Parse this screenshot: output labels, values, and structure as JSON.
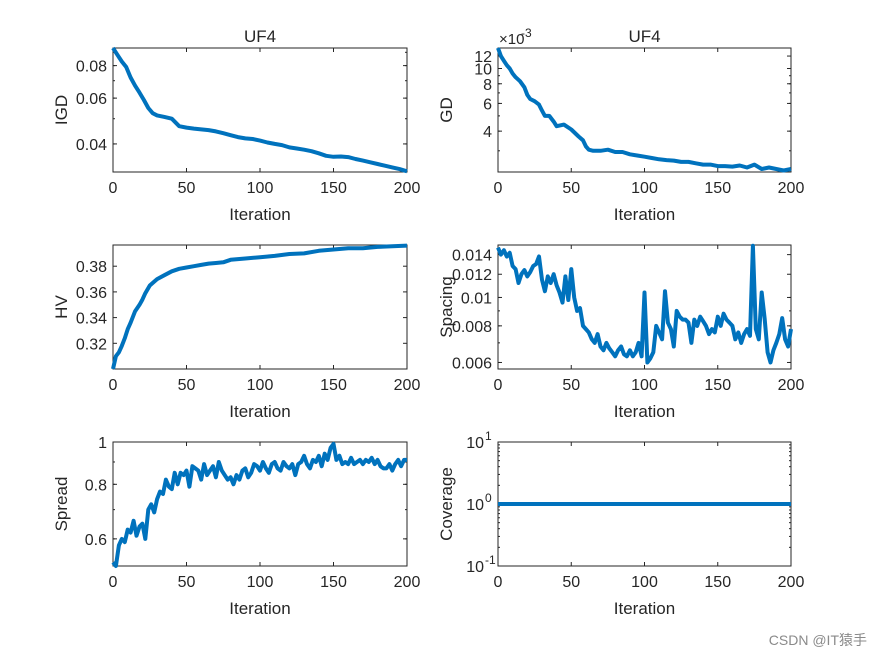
{
  "watermark": "CSDN @IT猿手",
  "colors": {
    "line": "#0072BD",
    "axis": "#262626",
    "background": "#ffffff"
  },
  "chart_data": [
    {
      "id": "igd",
      "type": "line",
      "title": "UF4",
      "xlabel": "Iteration",
      "ylabel": "IGD",
      "xlim": [
        0,
        200
      ],
      "ylim": [
        0.0312,
        0.0935
      ],
      "yscale": "log",
      "xticks": [
        0,
        50,
        100,
        150,
        200
      ],
      "xticklabels": [
        "0",
        "50",
        "100",
        "150",
        "200"
      ],
      "yticks": [
        0.04,
        0.06,
        0.08
      ],
      "yticklabels": [
        "0.04",
        "0.06",
        "0.08"
      ],
      "x": [
        0,
        3,
        6,
        9,
        12,
        15,
        18,
        21,
        24,
        27,
        30,
        35,
        40,
        45,
        50,
        55,
        60,
        65,
        70,
        75,
        80,
        85,
        90,
        95,
        100,
        105,
        110,
        115,
        120,
        125,
        130,
        135,
        140,
        145,
        150,
        155,
        160,
        165,
        170,
        175,
        180,
        185,
        190,
        195,
        200
      ],
      "y": [
        0.0935,
        0.088,
        0.083,
        0.079,
        0.072,
        0.067,
        0.063,
        0.059,
        0.055,
        0.0525,
        0.0515,
        0.0508,
        0.05,
        0.0468,
        0.0462,
        0.0458,
        0.0455,
        0.0452,
        0.0447,
        0.044,
        0.0432,
        0.0425,
        0.042,
        0.0418,
        0.0412,
        0.0405,
        0.04,
        0.0396,
        0.0388,
        0.0384,
        0.038,
        0.0375,
        0.0368,
        0.036,
        0.0357,
        0.0358,
        0.0356,
        0.035,
        0.0345,
        0.034,
        0.0335,
        0.033,
        0.0325,
        0.032,
        0.0314
      ]
    },
    {
      "id": "gd",
      "type": "line",
      "title": "UF4",
      "xlabel": "Iteration",
      "ylabel": "GD",
      "exponent_label": "×10",
      "exponent_power": "-3",
      "xlim": [
        0,
        200
      ],
      "ylim": [
        2.2,
        13.5
      ],
      "yscale": "log",
      "xticks": [
        0,
        50,
        100,
        150,
        200
      ],
      "xticklabels": [
        "0",
        "50",
        "100",
        "150",
        "200"
      ],
      "yticks": [
        4,
        6,
        8,
        10,
        12
      ],
      "yticklabels": [
        "4",
        "6",
        "8",
        "10",
        "12"
      ],
      "x": [
        0,
        2,
        4,
        6,
        8,
        10,
        12,
        15,
        18,
        20,
        22,
        25,
        28,
        30,
        32,
        35,
        38,
        40,
        45,
        50,
        55,
        58,
        60,
        62,
        65,
        70,
        75,
        80,
        85,
        90,
        95,
        100,
        105,
        110,
        115,
        120,
        125,
        130,
        135,
        140,
        145,
        150,
        155,
        160,
        165,
        170,
        175,
        180,
        185,
        190,
        195,
        200
      ],
      "y": [
        13.5,
        12.0,
        11.2,
        10.5,
        10.0,
        9.3,
        8.8,
        8.3,
        7.6,
        6.8,
        6.4,
        6.2,
        5.9,
        5.4,
        5.0,
        5.0,
        4.6,
        4.3,
        4.4,
        4.1,
        3.7,
        3.5,
        3.2,
        3.05,
        3.0,
        3.0,
        3.05,
        2.95,
        2.95,
        2.85,
        2.8,
        2.75,
        2.7,
        2.65,
        2.62,
        2.6,
        2.55,
        2.55,
        2.5,
        2.45,
        2.45,
        2.4,
        2.4,
        2.38,
        2.42,
        2.35,
        2.45,
        2.3,
        2.35,
        2.3,
        2.25,
        2.3
      ]
    },
    {
      "id": "hv",
      "type": "line",
      "title": "",
      "xlabel": "Iteration",
      "ylabel": "HV",
      "xlim": [
        0,
        200
      ],
      "ylim": [
        0.3,
        0.3965
      ],
      "yscale": "linear",
      "xticks": [
        0,
        50,
        100,
        150,
        200
      ],
      "xticklabels": [
        "0",
        "50",
        "100",
        "150",
        "200"
      ],
      "yticks": [
        0.32,
        0.34,
        0.36,
        0.38
      ],
      "yticklabels": [
        "0.32",
        "0.34",
        "0.36",
        "0.38"
      ],
      "x": [
        0,
        2,
        4,
        6,
        8,
        10,
        12,
        15,
        18,
        20,
        22,
        25,
        28,
        30,
        35,
        40,
        45,
        50,
        55,
        60,
        65,
        70,
        75,
        80,
        90,
        100,
        110,
        120,
        130,
        140,
        150,
        160,
        170,
        180,
        190,
        200
      ],
      "y": [
        0.3,
        0.31,
        0.313,
        0.318,
        0.324,
        0.331,
        0.336,
        0.345,
        0.35,
        0.354,
        0.359,
        0.365,
        0.368,
        0.37,
        0.373,
        0.376,
        0.378,
        0.379,
        0.38,
        0.381,
        0.382,
        0.3825,
        0.383,
        0.385,
        0.386,
        0.387,
        0.388,
        0.3895,
        0.39,
        0.392,
        0.393,
        0.394,
        0.394,
        0.395,
        0.3955,
        0.396
      ]
    },
    {
      "id": "spacing",
      "type": "line",
      "title": "",
      "xlabel": "Iteration",
      "ylabel": "Spacing",
      "xlim": [
        0,
        200
      ],
      "ylim": [
        0.0057,
        0.0151
      ],
      "yscale": "log",
      "xticks": [
        0,
        50,
        100,
        150,
        200
      ],
      "xticklabels": [
        "0",
        "50",
        "100",
        "150",
        "200"
      ],
      "yticks": [
        0.006,
        0.008,
        0.01,
        0.012,
        0.014
      ],
      "yticklabels": [
        "0.006",
        "0.008",
        "0.01",
        "0.012",
        "0.014"
      ],
      "x": [
        0,
        2,
        4,
        6,
        8,
        10,
        12,
        14,
        16,
        18,
        20,
        22,
        24,
        26,
        28,
        30,
        32,
        34,
        36,
        38,
        40,
        42,
        44,
        46,
        48,
        50,
        52,
        54,
        56,
        58,
        60,
        62,
        64,
        66,
        68,
        70,
        72,
        74,
        76,
        78,
        80,
        82,
        84,
        86,
        88,
        90,
        92,
        94,
        96,
        98,
        100,
        102,
        104,
        106,
        108,
        110,
        112,
        114,
        116,
        118,
        120,
        122,
        124,
        126,
        128,
        130,
        132,
        134,
        136,
        138,
        140,
        142,
        144,
        146,
        148,
        150,
        152,
        154,
        156,
        158,
        160,
        162,
        164,
        166,
        168,
        170,
        172,
        174,
        176,
        178,
        180,
        182,
        184,
        186,
        188,
        190,
        192,
        194,
        196,
        198,
        200
      ],
      "y": [
        0.0148,
        0.014,
        0.0145,
        0.0138,
        0.0142,
        0.0128,
        0.0125,
        0.0112,
        0.012,
        0.0124,
        0.0118,
        0.0122,
        0.0128,
        0.013,
        0.0138,
        0.0115,
        0.0105,
        0.0118,
        0.0112,
        0.012,
        0.011,
        0.0104,
        0.0096,
        0.0118,
        0.0098,
        0.0125,
        0.01,
        0.009,
        0.0092,
        0.008,
        0.0078,
        0.0076,
        0.0072,
        0.007,
        0.0075,
        0.0068,
        0.0066,
        0.007,
        0.0067,
        0.0065,
        0.0063,
        0.0066,
        0.0068,
        0.0064,
        0.0063,
        0.0066,
        0.0063,
        0.0065,
        0.007,
        0.0063,
        0.0104,
        0.006,
        0.0062,
        0.0065,
        0.008,
        0.0076,
        0.0072,
        0.0105,
        0.0082,
        0.0078,
        0.0068,
        0.009,
        0.0086,
        0.0084,
        0.0084,
        0.0082,
        0.007,
        0.0084,
        0.008,
        0.0086,
        0.0083,
        0.008,
        0.0075,
        0.0078,
        0.0076,
        0.0086,
        0.008,
        0.0088,
        0.0084,
        0.0082,
        0.008,
        0.0072,
        0.0076,
        0.007,
        0.0075,
        0.0078,
        0.0074,
        0.015,
        0.0078,
        0.0072,
        0.0104,
        0.0085,
        0.0065,
        0.006,
        0.0066,
        0.007,
        0.0075,
        0.0085,
        0.0072,
        0.0068,
        0.0078
      ]
    },
    {
      "id": "spread",
      "type": "line",
      "title": "",
      "xlabel": "Iteration",
      "ylabel": "Spread",
      "xlim": [
        0,
        200
      ],
      "ylim": [
        0.52,
        1.0
      ],
      "yscale": "log",
      "xticks": [
        0,
        50,
        100,
        150,
        200
      ],
      "xticklabels": [
        "0",
        "50",
        "100",
        "150",
        "200"
      ],
      "yticks": [
        0.6,
        0.8,
        1
      ],
      "yticklabels": [
        "0.6",
        "0.8",
        "1"
      ],
      "x": [
        0,
        2,
        4,
        6,
        8,
        10,
        12,
        14,
        16,
        18,
        20,
        22,
        24,
        26,
        28,
        30,
        32,
        34,
        36,
        38,
        40,
        42,
        44,
        46,
        48,
        50,
        52,
        54,
        56,
        58,
        60,
        62,
        64,
        66,
        68,
        70,
        72,
        74,
        76,
        78,
        80,
        82,
        84,
        86,
        88,
        90,
        92,
        94,
        96,
        98,
        100,
        102,
        104,
        106,
        108,
        110,
        112,
        114,
        116,
        118,
        120,
        122,
        124,
        126,
        128,
        130,
        132,
        134,
        136,
        138,
        140,
        142,
        144,
        146,
        148,
        150,
        152,
        154,
        156,
        158,
        160,
        162,
        164,
        166,
        168,
        170,
        172,
        174,
        176,
        178,
        180,
        182,
        184,
        186,
        188,
        190,
        192,
        194,
        196,
        198,
        200
      ],
      "y": [
        0.53,
        0.52,
        0.58,
        0.6,
        0.59,
        0.63,
        0.62,
        0.66,
        0.61,
        0.64,
        0.65,
        0.6,
        0.7,
        0.72,
        0.69,
        0.74,
        0.77,
        0.76,
        0.82,
        0.79,
        0.78,
        0.85,
        0.8,
        0.85,
        0.84,
        0.86,
        0.79,
        0.88,
        0.87,
        0.86,
        0.82,
        0.89,
        0.84,
        0.86,
        0.88,
        0.83,
        0.9,
        0.86,
        0.84,
        0.82,
        0.83,
        0.8,
        0.84,
        0.82,
        0.86,
        0.87,
        0.83,
        0.85,
        0.89,
        0.88,
        0.86,
        0.9,
        0.87,
        0.85,
        0.89,
        0.9,
        0.87,
        0.86,
        0.9,
        0.88,
        0.87,
        0.89,
        0.84,
        0.89,
        0.9,
        0.93,
        0.89,
        0.87,
        0.91,
        0.9,
        0.93,
        0.88,
        0.94,
        0.91,
        0.97,
        0.99,
        0.91,
        0.93,
        0.89,
        0.9,
        0.89,
        0.92,
        0.89,
        0.9,
        0.91,
        0.89,
        0.91,
        0.9,
        0.92,
        0.89,
        0.91,
        0.88,
        0.87,
        0.87,
        0.89,
        0.86,
        0.89,
        0.91,
        0.88,
        0.91,
        0.91
      ]
    },
    {
      "id": "coverage",
      "type": "line",
      "title": "",
      "xlabel": "Iteration",
      "ylabel": "Coverage",
      "xlim": [
        0,
        200
      ],
      "ylim": [
        0.1,
        10
      ],
      "yscale": "log",
      "xticks": [
        0,
        50,
        100,
        150,
        200
      ],
      "xticklabels": [
        "0",
        "50",
        "100",
        "150",
        "200"
      ],
      "yticks": [
        0.1,
        1,
        10
      ],
      "yticklabels": [
        "10",
        "10",
        "10"
      ],
      "yticksuper": [
        "-1",
        "0",
        "1"
      ],
      "x": [
        0,
        200
      ],
      "y": [
        1,
        1
      ]
    }
  ]
}
